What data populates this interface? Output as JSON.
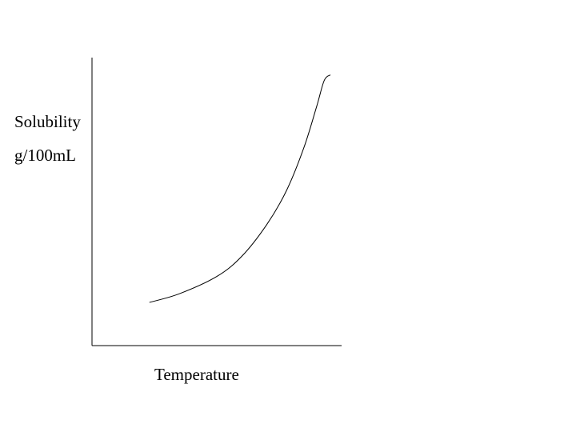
{
  "chart_data": {
    "type": "line",
    "title": "",
    "xlabel": "Temperature",
    "ylabel_lines": [
      "Solubility",
      "g/100mL"
    ],
    "axes": {
      "x_ticks": false,
      "y_ticks": false,
      "grid": false
    },
    "xlim": [
      0,
      100
    ],
    "ylim": [
      0,
      100
    ],
    "series": [
      {
        "color": "#000000",
        "x": [
          23,
          35,
          50,
          60,
          70,
          78,
          85,
          90,
          93,
          95.5
        ],
        "y": [
          15,
          18,
          24,
          31,
          42,
          54,
          69,
          83,
          92,
          94
        ]
      }
    ]
  }
}
